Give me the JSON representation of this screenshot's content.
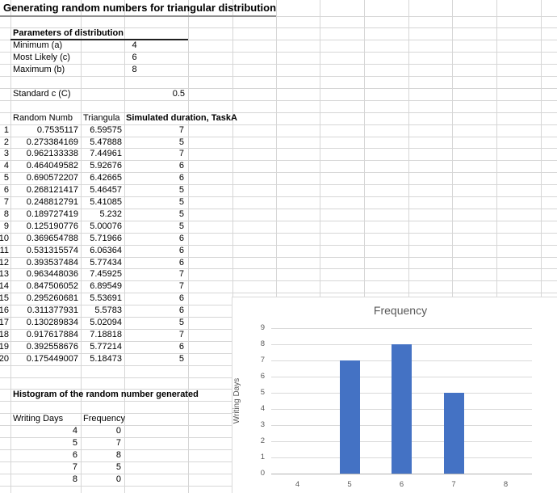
{
  "sheet_title": "Generating random numbers for triangular distribution",
  "parameters": {
    "heading": "Parameters of distribution",
    "items": [
      {
        "label": "Minimum (a)",
        "value": "4"
      },
      {
        "label": "Most Likely (c)",
        "value": "6"
      },
      {
        "label": "Maximum (b)",
        "value": "8"
      }
    ],
    "standard": {
      "label": "Standard c (C)",
      "value": "0.5"
    }
  },
  "sim_table": {
    "col_b_header": "Random Numb",
    "col_c_header": "Triangula",
    "col_d_header": "Simulated duration, TaskA",
    "rows": [
      {
        "n": "1",
        "random": "0.7535117",
        "triangular": "6.59575",
        "duration": "7"
      },
      {
        "n": "2",
        "random": "0.273384169",
        "triangular": "5.47888",
        "duration": "5"
      },
      {
        "n": "3",
        "random": "0.962133338",
        "triangular": "7.44961",
        "duration": "7"
      },
      {
        "n": "4",
        "random": "0.464049582",
        "triangular": "5.92676",
        "duration": "6"
      },
      {
        "n": "5",
        "random": "0.690572207",
        "triangular": "6.42665",
        "duration": "6"
      },
      {
        "n": "6",
        "random": "0.268121417",
        "triangular": "5.46457",
        "duration": "5"
      },
      {
        "n": "7",
        "random": "0.248812791",
        "triangular": "5.41085",
        "duration": "5"
      },
      {
        "n": "8",
        "random": "0.189727419",
        "triangular": "5.232",
        "duration": "5"
      },
      {
        "n": "9",
        "random": "0.125190776",
        "triangular": "5.00076",
        "duration": "5"
      },
      {
        "n": "10",
        "random": "0.369654788",
        "triangular": "5.71966",
        "duration": "6"
      },
      {
        "n": "11",
        "random": "0.531315574",
        "triangular": "6.06364",
        "duration": "6"
      },
      {
        "n": "12",
        "random": "0.393537484",
        "triangular": "5.77434",
        "duration": "6"
      },
      {
        "n": "13",
        "random": "0.963448036",
        "triangular": "7.45925",
        "duration": "7"
      },
      {
        "n": "14",
        "random": "0.847506052",
        "triangular": "6.89549",
        "duration": "7"
      },
      {
        "n": "15",
        "random": "0.295260681",
        "triangular": "5.53691",
        "duration": "6"
      },
      {
        "n": "16",
        "random": "0.311377931",
        "triangular": "5.5783",
        "duration": "6"
      },
      {
        "n": "17",
        "random": "0.130289834",
        "triangular": "5.02094",
        "duration": "5"
      },
      {
        "n": "18",
        "random": "0.917617884",
        "triangular": "7.18818",
        "duration": "7"
      },
      {
        "n": "19",
        "random": "0.392558676",
        "triangular": "5.77214",
        "duration": "6"
      },
      {
        "n": "20",
        "random": "0.175449007",
        "triangular": "5.18473",
        "duration": "5"
      }
    ]
  },
  "histogram_section": {
    "heading": "Histogram of the random number generated",
    "days_header": "Writing Days",
    "freq_header": "Frequency",
    "rows": [
      {
        "days": "4",
        "frequency": "0"
      },
      {
        "days": "5",
        "frequency": "7"
      },
      {
        "days": "6",
        "frequency": "8"
      },
      {
        "days": "7",
        "frequency": "5"
      },
      {
        "days": "8",
        "frequency": "0"
      }
    ]
  },
  "chart_data": {
    "type": "bar",
    "title": "Frequency",
    "categories": [
      4,
      5,
      6,
      7,
      8
    ],
    "values": [
      0,
      7,
      8,
      5,
      0
    ],
    "xlabel": "",
    "ylabel": "Writing Days",
    "ylim": [
      0,
      9
    ],
    "ytick_step": 1,
    "grid": true,
    "legend_position": "none",
    "bar_color": "#4472C4",
    "gridline_color": "#d9d9d9",
    "axis_text_color": "#595959"
  }
}
